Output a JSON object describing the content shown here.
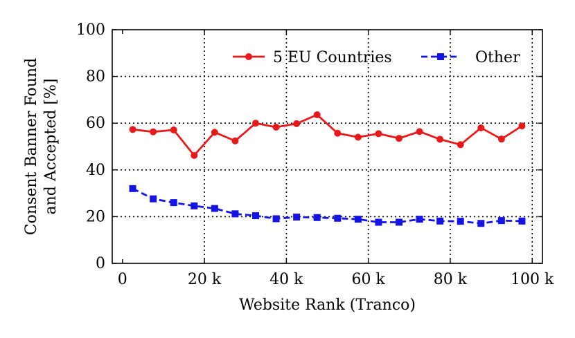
{
  "chart_data": {
    "type": "line",
    "x": [
      2.5,
      7.5,
      12.5,
      17.5,
      22.5,
      27.5,
      32.5,
      37.5,
      42.5,
      47.5,
      52.5,
      57.5,
      62.5,
      67.5,
      72.5,
      77.5,
      82.5,
      87.5,
      92.5,
      97.5
    ],
    "series": [
      {
        "name": "5 EU Countries",
        "color": "#e8191a",
        "marker": "circle",
        "linestyle": "solid",
        "values": [
          57.3,
          56.3,
          57.1,
          46.2,
          56.1,
          52.4,
          60.0,
          58.3,
          59.8,
          63.6,
          55.7,
          54.0,
          55.5,
          53.5,
          56.4,
          53.1,
          50.8,
          58.0,
          53.2,
          58.8
        ]
      },
      {
        "name": "Other",
        "color": "#1414e6",
        "marker": "square",
        "linestyle": "dashed",
        "values": [
          32.0,
          27.6,
          26.0,
          24.6,
          23.5,
          21.2,
          20.4,
          19.1,
          19.8,
          19.6,
          19.3,
          18.9,
          17.6,
          17.6,
          18.9,
          18.1,
          18.0,
          17.1,
          18.3,
          18.1
        ]
      }
    ],
    "xlabel": "Website Rank (Tranco)",
    "ylabel": [
      "Consent Banner Found",
      "and Accepted [%]"
    ],
    "xlim": [
      -2.5,
      102.5
    ],
    "ylim": [
      0,
      100
    ],
    "xticks": [
      0,
      20,
      40,
      60,
      80,
      100
    ],
    "xtick_labels": [
      "0",
      "20 k",
      "40 k",
      "60 k",
      "80 k",
      "100 k"
    ],
    "yticks": [
      0,
      20,
      40,
      60,
      80,
      100
    ],
    "ytick_labels": [
      "0",
      "20",
      "40",
      "60",
      "80",
      "100"
    ],
    "grid": true,
    "legend_position": "top-right"
  }
}
